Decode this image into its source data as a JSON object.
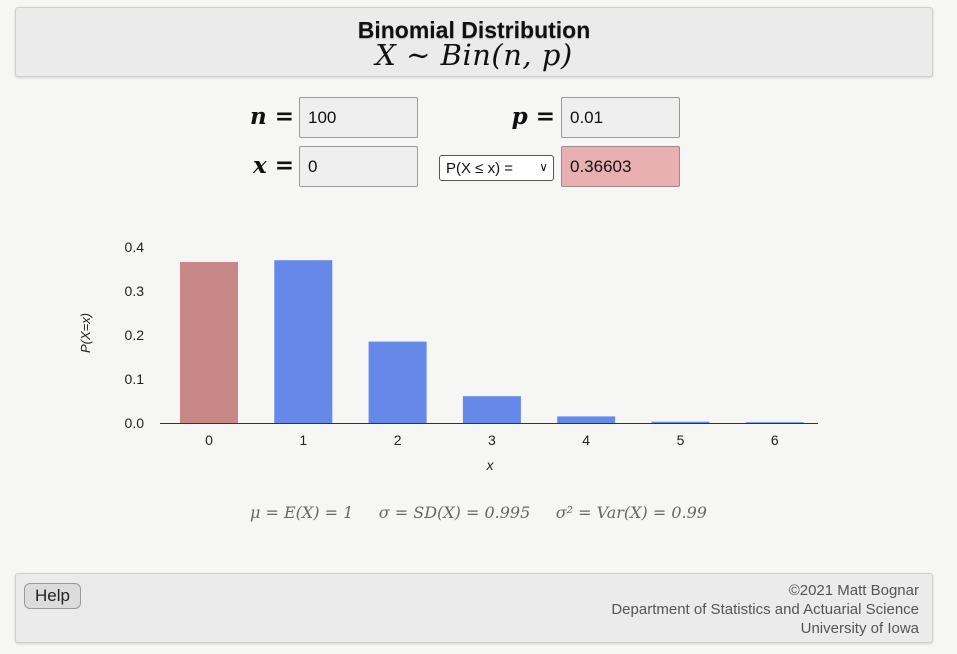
{
  "header": {
    "title": "Binomial Distribution",
    "formula": "X ∼ Bin(n, p)"
  },
  "inputs": {
    "n_label": "n =",
    "n_value": "100",
    "p_label": "p =",
    "p_value": "0.01",
    "x_label": "x =",
    "x_value": "0",
    "prob_select": "P(X ≤ x) =",
    "prob_result": "0.36603"
  },
  "chart_data": {
    "type": "bar",
    "categories": [
      "0",
      "1",
      "2",
      "3",
      "4",
      "5",
      "6"
    ],
    "values": [
      0.366,
      0.37,
      0.185,
      0.061,
      0.015,
      0.003,
      0.0005
    ],
    "highlighted_categories": [
      "0"
    ],
    "title": "",
    "xlabel": "x",
    "ylabel": "P(X=x)",
    "ylim": [
      0,
      0.4
    ],
    "yticks": [
      "0.0",
      "0.1",
      "0.2",
      "0.3",
      "0.4"
    ],
    "grid": false,
    "colors": {
      "bar": "#6688e8",
      "highlight": "#c98888"
    }
  },
  "stats": {
    "text": "μ = E(X) = 1     σ = SD(X) = 0.995     σ² = Var(X) = 0.99"
  },
  "footer": {
    "help_label": "Help",
    "credit_line1": "©2021 Matt Bognar",
    "credit_line2": "Department of Statistics and Actuarial Science",
    "credit_line3": "University of Iowa"
  }
}
